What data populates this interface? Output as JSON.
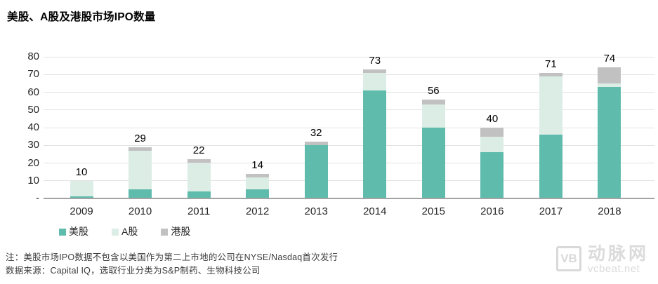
{
  "title": "美股、A股及港股市场IPO数量",
  "chart_data": {
    "type": "bar",
    "stacked": true,
    "title": "美股、A股及港股市场IPO数量",
    "categories": [
      "2009",
      "2010",
      "2011",
      "2012",
      "2013",
      "2014",
      "2015",
      "2016",
      "2017",
      "2018"
    ],
    "series": [
      {
        "name": "美股",
        "color": "#5fbcad",
        "values": [
          1,
          5,
          4,
          5,
          30,
          61,
          40,
          26,
          36,
          63
        ]
      },
      {
        "name": "A股",
        "color": "#dcede6",
        "values": [
          9,
          22,
          16,
          7,
          0,
          10,
          13,
          9,
          33,
          2
        ]
      },
      {
        "name": "港股",
        "color": "#c1c1c1",
        "values": [
          0,
          2,
          2,
          2,
          2,
          2,
          3,
          5,
          2,
          9
        ]
      }
    ],
    "totals": [
      10,
      29,
      22,
      14,
      32,
      73,
      56,
      40,
      71,
      74
    ],
    "xlabel": "",
    "ylabel": "",
    "ylim": [
      0,
      80
    ],
    "yticks": [
      {
        "value": 0,
        "label": "-"
      },
      {
        "value": 10,
        "label": "10"
      },
      {
        "value": 20,
        "label": "20"
      },
      {
        "value": 30,
        "label": "30"
      },
      {
        "value": 40,
        "label": "40"
      },
      {
        "value": 50,
        "label": "50"
      },
      {
        "value": 60,
        "label": "60"
      },
      {
        "value": 70,
        "label": "70"
      },
      {
        "value": 80,
        "label": "80"
      }
    ],
    "grid": true,
    "legend_position": "bottom-left"
  },
  "legend": {
    "items": [
      {
        "label": "美股",
        "color": "#5fbcad"
      },
      {
        "label": "A股",
        "color": "#dcede6"
      },
      {
        "label": "港股",
        "color": "#c1c1c1"
      }
    ]
  },
  "footnotes": [
    "注：美股市场IPO数据不包含以美国作为第二上市地的公司在NYSE/Nasdaq首次发行",
    "数据来源：Capital IQ，选取行业分类为S&P制药、生物科技公司"
  ],
  "watermark": {
    "logo_text": "VB",
    "brand": "动脉网",
    "site": "vcbeat.net"
  }
}
